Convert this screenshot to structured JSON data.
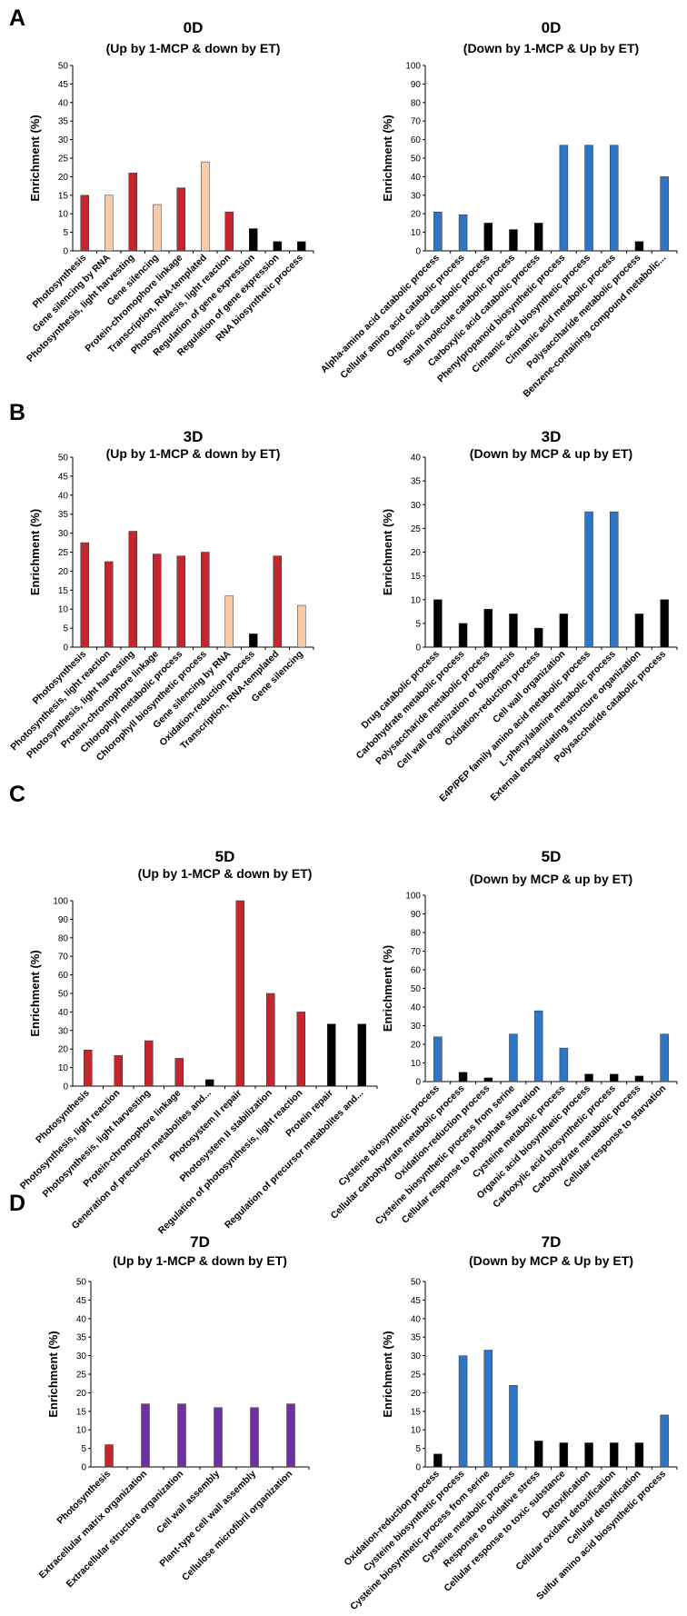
{
  "panels": [
    {
      "label": "A",
      "charts": [
        0,
        1
      ]
    },
    {
      "label": "B",
      "charts": [
        2,
        3
      ]
    },
    {
      "label": "C",
      "charts": [
        4,
        5
      ]
    },
    {
      "label": "D",
      "charts": [
        6,
        7
      ]
    }
  ],
  "colors": {
    "red": "#c1272d",
    "peach": "#f8cba8",
    "black": "#000000",
    "blue": "#2e75c6",
    "purple": "#7030a0"
  },
  "chart_data": [
    {
      "type": "bar",
      "title": "0D",
      "subtitle": "(Up by 1-MCP & down by ET)",
      "ylabel": "Enrichment (%)",
      "ylim": [
        0,
        50
      ],
      "ystep": 5,
      "categories": [
        "Photosynthesis",
        "Gene silencing by RNA",
        "Photosynthesis, light harvesting",
        "Gene silencing",
        "Protein-chromophore linkage",
        "Transcription, RNA-templated",
        "Photosynthesis, light reaction",
        "Regulation of gene expression",
        "Regulation of gene expression",
        "RNA biosynthetic process"
      ],
      "values": [
        15,
        15,
        21,
        12.5,
        17,
        24,
        10.5,
        6,
        2.5,
        2.5
      ],
      "colors": [
        "red",
        "peach",
        "red",
        "peach",
        "red",
        "peach",
        "red",
        "black",
        "black",
        "black"
      ]
    },
    {
      "type": "bar",
      "title": "0D",
      "subtitle": "(Down by 1-MCP & Up by ET)",
      "ylabel": "Enrichment (%)",
      "ylim": [
        0,
        100
      ],
      "ystep": 10,
      "categories": [
        "Alpha-amino acid catabolic process",
        "Cellular amino acid catabolic process",
        "Organic acid catabolic process",
        "Small molecule catabolic process",
        "Carboxylic acid catabolic process",
        "Phenylpropanoid biosynthetic process",
        "Cinnamic acid biosynthetic process",
        "Cinnamic acid metabolic process",
        "Polysaccharide metabolic process",
        "Benzene-containing compound metabolic..."
      ],
      "values": [
        21,
        19.5,
        15,
        11.5,
        15,
        57,
        57,
        57,
        5,
        40
      ],
      "colors": [
        "blue",
        "blue",
        "black",
        "black",
        "black",
        "blue",
        "blue",
        "blue",
        "black",
        "blue"
      ]
    },
    {
      "type": "bar",
      "title": "3D",
      "subtitle": "(Up by 1-MCP & down by ET)",
      "ylabel": "Enrichment (%)",
      "ylim": [
        0,
        50
      ],
      "ystep": 5,
      "categories": [
        "Photosynthesis",
        "Photosynthesis, light reaction",
        "Photosynthesis, light harvesting",
        "Protein-chromophore linkage",
        "Chlorophyll metabolic process",
        "Chlorophyll biosynthetic process",
        "Gene silencing by RNA",
        "Oxidation-reduction process",
        "Transcription, RNA-templated",
        "Gene silencing"
      ],
      "values": [
        27.5,
        22.5,
        30.5,
        24.5,
        24,
        25,
        13.5,
        3.5,
        24,
        11
      ],
      "colors": [
        "red",
        "red",
        "red",
        "red",
        "red",
        "red",
        "peach",
        "black",
        "red",
        "peach"
      ]
    },
    {
      "type": "bar",
      "title": "3D",
      "subtitle": "(Down by MCP & up by ET)",
      "ylabel": "Enrichment (%)",
      "ylim": [
        0,
        40
      ],
      "ystep": 5,
      "categories": [
        "Drug catabolic process",
        "Carbohydrate metabolic process",
        "Polysaccharide metabolic process",
        "Cell wall organization or biogenesis",
        "Oxidation-reduction process",
        "Cell wall organization",
        "E4P/PEP family amino acid metabolic process",
        "L-phenylalanine metabolic process",
        "External encapsulating structure organization",
        "Polysaccharide catabolic process"
      ],
      "values": [
        10,
        5,
        8,
        7,
        4,
        7,
        28.5,
        28.5,
        7,
        10
      ],
      "colors": [
        "black",
        "black",
        "black",
        "black",
        "black",
        "black",
        "blue",
        "blue",
        "black",
        "black"
      ]
    },
    {
      "type": "bar",
      "title": "5D",
      "subtitle": "(Up by 1-MCP & down by ET)",
      "ylabel": "Enrichment (%)",
      "ylim": [
        0,
        100
      ],
      "ystep": 10,
      "categories": [
        "Photosynthesis",
        "Photosynthesis, light reaction",
        "Photosynthesis, light harvesting",
        "Protein-chromophore linkage",
        "Generation of precursor metabolites and...",
        "Photosystem II repair",
        "Photosystem II stabilization",
        "Regulation of photosynthesis, light reaction",
        "Protein repair",
        "Regulation of precursor metabolites and..."
      ],
      "values": [
        19.5,
        16.5,
        24.5,
        15,
        3.5,
        100,
        50,
        40,
        33.5,
        33.5
      ],
      "colors": [
        "red",
        "red",
        "red",
        "red",
        "black",
        "red",
        "red",
        "red",
        "black",
        "black"
      ]
    },
    {
      "type": "bar",
      "title": "5D",
      "subtitle": "(Down by MCP & up by ET)",
      "ylabel": "Enrichment (%)",
      "ylim": [
        0,
        100
      ],
      "ystep": 10,
      "categories": [
        "Cysteine biosynthetic process",
        "Cellular carbohydrate metabolic process",
        "Oxidation-reduction process",
        "Cysteine biosynthetic process from serine",
        "Cellular response to phosphate starvation",
        "Cysteine metabolic process",
        "Organic acid biosynthetic process",
        "Carboxylic acid biosynthetic process",
        "Carbohydrate metabolic process",
        "Cellular response to starvation"
      ],
      "values": [
        24,
        5,
        2,
        25.5,
        38,
        18,
        4,
        4,
        3,
        25.5
      ],
      "colors": [
        "blue",
        "black",
        "black",
        "blue",
        "blue",
        "blue",
        "black",
        "black",
        "black",
        "blue"
      ]
    },
    {
      "type": "bar",
      "title": "7D",
      "subtitle": "(Up by 1-MCP & down by ET)",
      "ylabel": "Enrichment (%)",
      "ylim": [
        0,
        50
      ],
      "ystep": 5,
      "categories": [
        "Photosynthesis",
        "Extracellular matrix organization",
        "Extracellular structure organization",
        "Cell wall assembly",
        "Plant-type cell wall assembly",
        "Cellulose microfibril organization"
      ],
      "values": [
        6,
        17,
        17,
        16,
        16,
        17
      ],
      "colors": [
        "red",
        "purple",
        "purple",
        "purple",
        "purple",
        "purple"
      ]
    },
    {
      "type": "bar",
      "title": "7D",
      "subtitle": "(Down by MCP & Up by ET)",
      "ylabel": "Enrichment (%)",
      "ylim": [
        0,
        50
      ],
      "ystep": 5,
      "categories": [
        "Oxidation-reduction process",
        "Cysteine biosynthetic process",
        "Cysteine biosynthetic process from serine",
        "Cysteine metabolic process",
        "Response to oxidative stress",
        "Cellular response to toxic substance",
        "Detoxification",
        "Cellular oxidant detoxification",
        "Cellular detoxification",
        "Sulfur amino acid biosynthetic process"
      ],
      "values": [
        3.5,
        30,
        31.5,
        22,
        7,
        6.5,
        6.5,
        6.5,
        6.5,
        14
      ],
      "colors": [
        "black",
        "blue",
        "blue",
        "blue",
        "black",
        "black",
        "black",
        "black",
        "black",
        "blue"
      ]
    }
  ]
}
